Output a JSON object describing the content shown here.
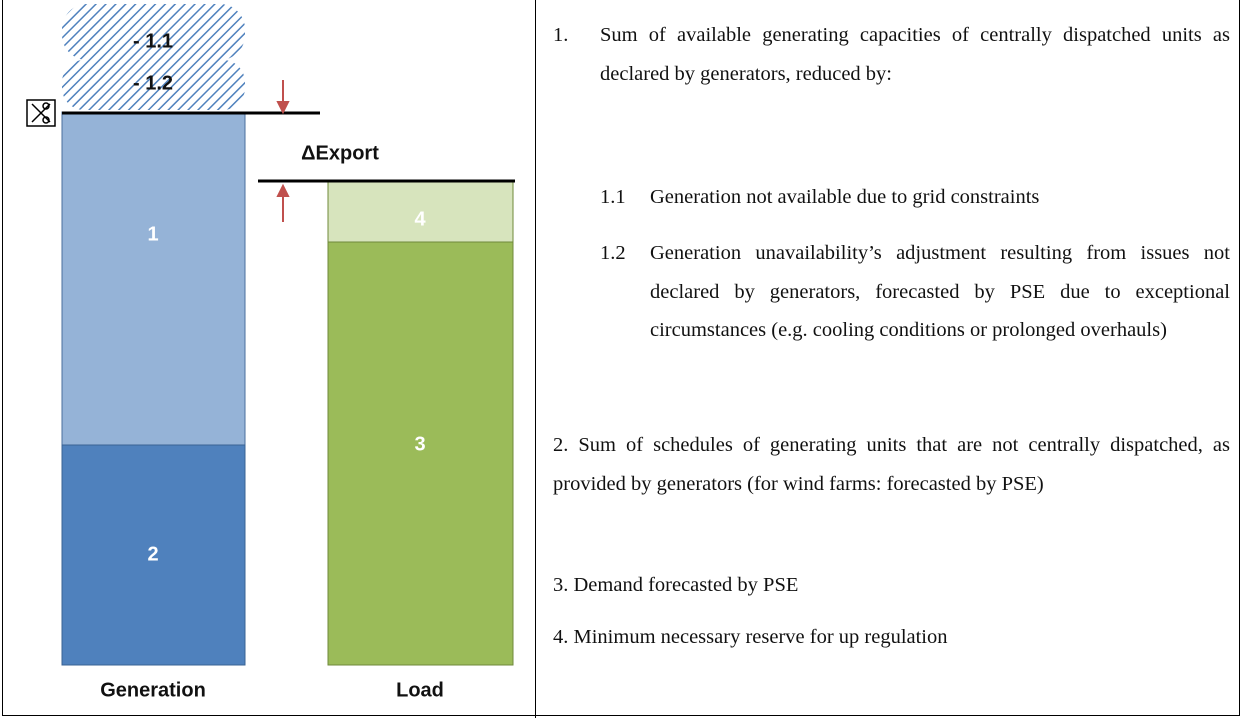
{
  "diagram": {
    "generation_blocks": [
      "- 1.1",
      "- 1.2",
      "1",
      "2"
    ],
    "load_blocks": [
      "4",
      "3"
    ],
    "delta_label": "ΔExport",
    "generation_label": "Generation",
    "load_label": "Load"
  },
  "legend": {
    "items": [
      {
        "number": "1.",
        "text": "Sum of available generating capacities of centrally dispatched units as declared by generators, reduced by:",
        "subitems": [
          {
            "number": "1.1",
            "text": "Generation not available due to grid constraints"
          },
          {
            "number": "1.2",
            "text": "Generation unavailability’s adjustment resulting from issues not declared by generators, forecasted by PSE due to exceptional circumstances (e.g. cooling conditions or prolonged overhauls)"
          }
        ]
      },
      {
        "text": "2. Sum of schedules of generating units that are not centrally dispatched, as provided by generators (for wind farms: forecasted by PSE)"
      },
      {
        "text": "3. Demand forecasted by PSE"
      },
      {
        "text": "4. Minimum necessary reserve for up regulation"
      }
    ]
  }
}
